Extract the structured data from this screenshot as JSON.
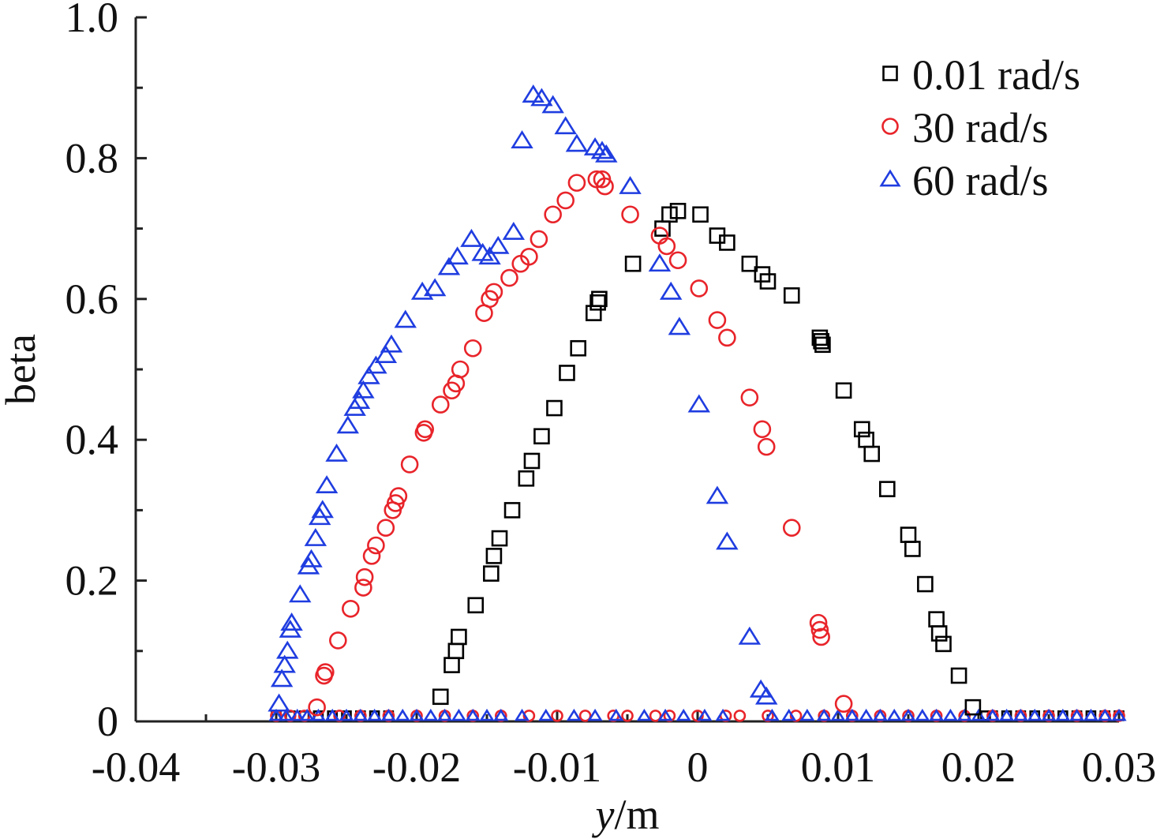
{
  "chart_data": {
    "type": "scatter",
    "title": "",
    "xlabel_italic": "y",
    "xlabel_rest": "/m",
    "ylabel": "beta",
    "xlim": [
      -0.04,
      0.03
    ],
    "ylim": [
      0,
      1.0
    ],
    "x_ticks": [
      -0.04,
      -0.03,
      -0.02,
      -0.01,
      0,
      0.01,
      0.02,
      0.03
    ],
    "x_tick_labels": [
      "-0.04",
      "-0.03",
      "-0.02",
      "-0.01",
      "0",
      "0.01",
      "0.02",
      "0.03"
    ],
    "y_ticks": [
      0,
      0.2,
      0.4,
      0.6,
      0.8,
      1.0
    ],
    "y_tick_labels": [
      "0",
      "0.2",
      "0.4",
      "0.6",
      "0.8",
      "1.0"
    ],
    "grid": false,
    "legend_position": "top-right",
    "series": [
      {
        "name": "0.01 rad/s",
        "marker": "square",
        "color": "#000000",
        "points": [
          [
            -0.0183,
            0.035
          ],
          [
            -0.0175,
            0.08
          ],
          [
            -0.0172,
            0.1
          ],
          [
            -0.017,
            0.12
          ],
          [
            -0.0158,
            0.165
          ],
          [
            -0.0147,
            0.21
          ],
          [
            -0.0145,
            0.235
          ],
          [
            -0.0141,
            0.26
          ],
          [
            -0.0132,
            0.3
          ],
          [
            -0.0122,
            0.345
          ],
          [
            -0.0118,
            0.37
          ],
          [
            -0.0111,
            0.405
          ],
          [
            -0.0102,
            0.445
          ],
          [
            -0.0093,
            0.495
          ],
          [
            -0.0085,
            0.53
          ],
          [
            -0.0074,
            0.58
          ],
          [
            -0.0071,
            0.595
          ],
          [
            -0.007,
            0.6
          ],
          [
            -0.0046,
            0.65
          ],
          [
            -0.0025,
            0.7
          ],
          [
            -0.002,
            0.72
          ],
          [
            -0.0014,
            0.725
          ],
          [
            0.0002,
            0.72
          ],
          [
            0.0014,
            0.69
          ],
          [
            0.0021,
            0.68
          ],
          [
            0.0037,
            0.65
          ],
          [
            0.0046,
            0.635
          ],
          [
            0.005,
            0.625
          ],
          [
            0.0067,
            0.605
          ],
          [
            0.0087,
            0.545
          ],
          [
            0.0088,
            0.54
          ],
          [
            0.0089,
            0.535
          ],
          [
            0.0104,
            0.47
          ],
          [
            0.0117,
            0.415
          ],
          [
            0.012,
            0.4
          ],
          [
            0.0124,
            0.38
          ],
          [
            0.0135,
            0.33
          ],
          [
            0.015,
            0.265
          ],
          [
            0.0153,
            0.245
          ],
          [
            0.0162,
            0.195
          ],
          [
            0.017,
            0.145
          ],
          [
            0.0172,
            0.125
          ],
          [
            0.0175,
            0.11
          ],
          [
            0.0186,
            0.065
          ],
          [
            0.0196,
            0.02
          ]
        ],
        "baseline": [
          -0.03,
          -0.029,
          -0.028,
          -0.027,
          -0.026,
          -0.025,
          -0.024,
          -0.023,
          -0.022,
          0.0205,
          0.021,
          0.022,
          0.023,
          0.024,
          0.025,
          0.026,
          0.027,
          0.028,
          0.029,
          0.03
        ]
      },
      {
        "name": "30 rad/s",
        "marker": "circle",
        "color": "#e8242a",
        "points": [
          [
            -0.0271,
            0.02
          ],
          [
            -0.0266,
            0.065
          ],
          [
            -0.0265,
            0.07
          ],
          [
            -0.0256,
            0.115
          ],
          [
            -0.0247,
            0.16
          ],
          [
            -0.0238,
            0.19
          ],
          [
            -0.0237,
            0.205
          ],
          [
            -0.0232,
            0.235
          ],
          [
            -0.0229,
            0.25
          ],
          [
            -0.0222,
            0.275
          ],
          [
            -0.0217,
            0.3
          ],
          [
            -0.0215,
            0.31
          ],
          [
            -0.0213,
            0.32
          ],
          [
            -0.0205,
            0.365
          ],
          [
            -0.0195,
            0.41
          ],
          [
            -0.0194,
            0.415
          ],
          [
            -0.0183,
            0.45
          ],
          [
            -0.0175,
            0.47
          ],
          [
            -0.0172,
            0.48
          ],
          [
            -0.0169,
            0.5
          ],
          [
            -0.016,
            0.53
          ],
          [
            -0.0152,
            0.58
          ],
          [
            -0.0148,
            0.6
          ],
          [
            -0.0145,
            0.61
          ],
          [
            -0.0134,
            0.63
          ],
          [
            -0.0126,
            0.65
          ],
          [
            -0.012,
            0.66
          ],
          [
            -0.0113,
            0.685
          ],
          [
            -0.0103,
            0.72
          ],
          [
            -0.0094,
            0.74
          ],
          [
            -0.0086,
            0.765
          ],
          [
            -0.0072,
            0.77
          ],
          [
            -0.0068,
            0.77
          ],
          [
            -0.0066,
            0.76
          ],
          [
            -0.0048,
            0.72
          ],
          [
            -0.0027,
            0.69
          ],
          [
            -0.0022,
            0.675
          ],
          [
            -0.0014,
            0.655
          ],
          [
            0.0001,
            0.615
          ],
          [
            0.0014,
            0.57
          ],
          [
            0.0021,
            0.545
          ],
          [
            0.0037,
            0.46
          ],
          [
            0.0046,
            0.415
          ],
          [
            0.0049,
            0.39
          ],
          [
            0.0067,
            0.275
          ],
          [
            0.0086,
            0.14
          ],
          [
            0.0087,
            0.13
          ],
          [
            0.0088,
            0.12
          ],
          [
            0.0104,
            0.025
          ]
        ],
        "baseline": [
          -0.03,
          -0.029,
          -0.028,
          -0.0255,
          -0.024,
          -0.022,
          -0.02,
          -0.018,
          -0.016,
          -0.014,
          -0.012,
          -0.01,
          -0.008,
          -0.006,
          -0.005,
          -0.003,
          -0.002,
          0,
          0.002,
          0.003,
          0.005,
          0.007,
          0.009,
          0.011,
          0.013,
          0.015,
          0.017,
          0.019,
          0.021,
          0.023,
          0.025,
          0.027,
          0.029,
          0.03
        ]
      },
      {
        "name": "60 rad/s",
        "marker": "triangle",
        "color": "#1f3de0",
        "points": [
          [
            -0.0298,
            0.025
          ],
          [
            -0.0296,
            0.06
          ],
          [
            -0.0294,
            0.08
          ],
          [
            -0.0292,
            0.1
          ],
          [
            -0.029,
            0.13
          ],
          [
            -0.0289,
            0.14
          ],
          [
            -0.0283,
            0.18
          ],
          [
            -0.0277,
            0.22
          ],
          [
            -0.0275,
            0.23
          ],
          [
            -0.0272,
            0.26
          ],
          [
            -0.0269,
            0.29
          ],
          [
            -0.0267,
            0.3
          ],
          [
            -0.0264,
            0.335
          ],
          [
            -0.0257,
            0.38
          ],
          [
            -0.0249,
            0.42
          ],
          [
            -0.0244,
            0.445
          ],
          [
            -0.0241,
            0.455
          ],
          [
            -0.0238,
            0.47
          ],
          [
            -0.0234,
            0.49
          ],
          [
            -0.0229,
            0.505
          ],
          [
            -0.0222,
            0.52
          ],
          [
            -0.0218,
            0.535
          ],
          [
            -0.0208,
            0.57
          ],
          [
            -0.0196,
            0.61
          ],
          [
            -0.0187,
            0.615
          ],
          [
            -0.0177,
            0.645
          ],
          [
            -0.0171,
            0.66
          ],
          [
            -0.0161,
            0.685
          ],
          [
            -0.0153,
            0.665
          ],
          [
            -0.0148,
            0.66
          ],
          [
            -0.0142,
            0.675
          ],
          [
            -0.0131,
            0.695
          ],
          [
            -0.0125,
            0.825
          ],
          [
            -0.0117,
            0.89
          ],
          [
            -0.0111,
            0.885
          ],
          [
            -0.0103,
            0.875
          ],
          [
            -0.0094,
            0.845
          ],
          [
            -0.0086,
            0.82
          ],
          [
            -0.0073,
            0.815
          ],
          [
            -0.0068,
            0.81
          ],
          [
            -0.0065,
            0.805
          ],
          [
            -0.0048,
            0.76
          ],
          [
            -0.0027,
            0.65
          ],
          [
            -0.0019,
            0.61
          ],
          [
            -0.0013,
            0.56
          ],
          [
            0.0001,
            0.45
          ],
          [
            0.0014,
            0.32
          ],
          [
            0.0021,
            0.255
          ],
          [
            0.0037,
            0.12
          ],
          [
            0.0045,
            0.045
          ],
          [
            0.0049,
            0.035
          ]
        ],
        "baseline": [
          -0.03,
          -0.0293,
          -0.0285,
          -0.0278,
          -0.027,
          -0.026,
          -0.025,
          -0.024,
          -0.023,
          -0.022,
          -0.021,
          -0.02,
          -0.019,
          -0.018,
          -0.017,
          -0.016,
          -0.015,
          -0.014,
          -0.0125,
          -0.0108,
          -0.0088,
          -0.0073,
          -0.0058,
          -0.0038,
          -0.0023,
          -0.001,
          0.0005,
          0.0018,
          0.0053,
          0.0065,
          0.0078,
          0.009,
          0.01,
          0.011,
          0.012,
          0.013,
          0.014,
          0.015,
          0.016,
          0.017,
          0.018,
          0.019,
          0.02,
          0.021,
          0.022,
          0.023,
          0.024,
          0.025,
          0.026,
          0.027,
          0.028,
          0.029,
          0.03
        ]
      }
    ]
  }
}
